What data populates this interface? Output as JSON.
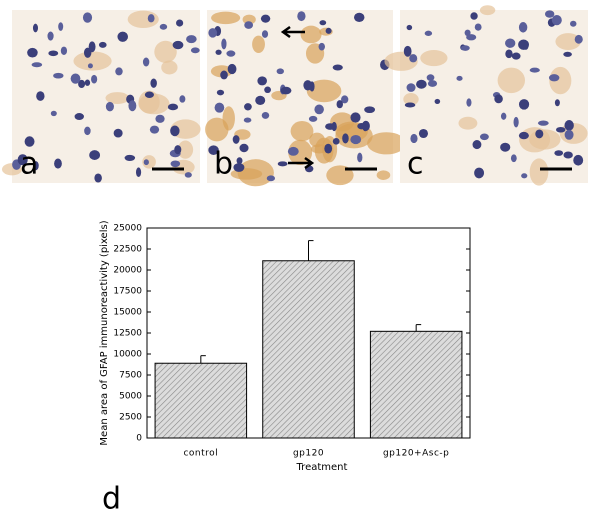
{
  "panels": [
    {
      "label": "a"
    },
    {
      "label": "b"
    },
    {
      "label": "c"
    }
  ],
  "chart_label": "d",
  "chart_data": {
    "type": "bar",
    "ylabel": "Mean area of GFAP immunoreactivity (pixels)",
    "xlabel": "Treatment",
    "categories": [
      "control",
      "gp120",
      "gp120+Asc-p"
    ],
    "values": [
      8900,
      21100,
      12700
    ],
    "errors": [
      900,
      2400,
      800
    ],
    "color": "#c8c8c8",
    "ylim": [
      0,
      25000
    ],
    "yticks": [
      0,
      2500,
      5000,
      7500,
      10000,
      12500,
      15000,
      17500,
      20000,
      22500,
      25000
    ]
  }
}
